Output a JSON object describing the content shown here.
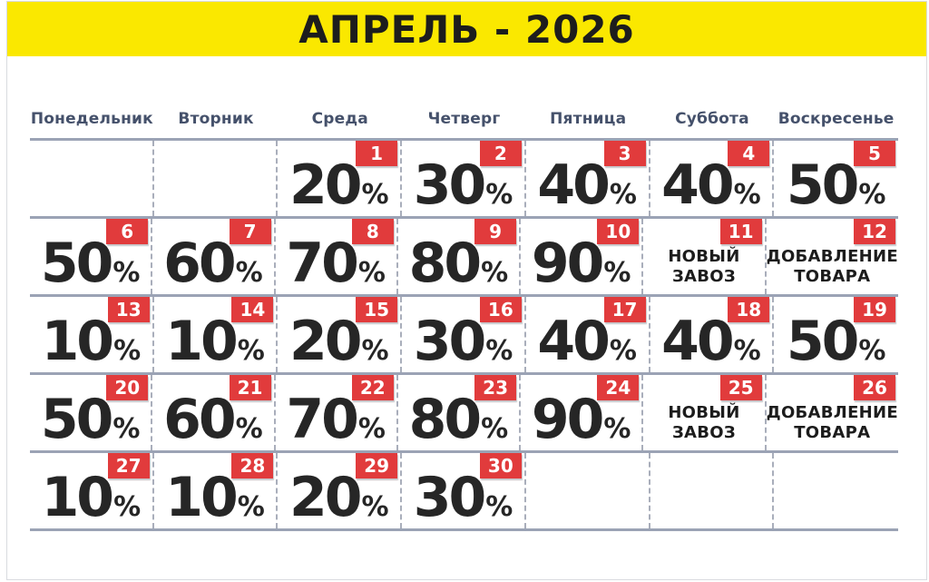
{
  "title": "АПРЕЛЬ - 2026",
  "colors": {
    "banner_bg": "#FAE800",
    "title_text": "#1D1D1D",
    "weekday_text": "#45516B",
    "value_text": "#262626",
    "badge_bg": "#E13B3C",
    "badge_text": "#FFFFFF",
    "row_line": "#9BA3B5",
    "col_line": "#A9AEBB",
    "frame_line": "#D9DBE0"
  },
  "calendar": {
    "weekdays": [
      "Понедельник",
      "Вторник",
      "Среда",
      "Четверг",
      "Пятница",
      "Суббота",
      "Воскресенье"
    ],
    "percent_suffix": "%",
    "weeks": [
      [
        {
          "empty": true
        },
        {
          "empty": true
        },
        {
          "day": "1",
          "percent": "20"
        },
        {
          "day": "2",
          "percent": "30"
        },
        {
          "day": "3",
          "percent": "40"
        },
        {
          "day": "4",
          "percent": "40"
        },
        {
          "day": "5",
          "percent": "50"
        }
      ],
      [
        {
          "day": "6",
          "percent": "50"
        },
        {
          "day": "7",
          "percent": "60"
        },
        {
          "day": "8",
          "percent": "70"
        },
        {
          "day": "9",
          "percent": "80"
        },
        {
          "day": "10",
          "percent": "90"
        },
        {
          "day": "11",
          "lines": [
            "НОВЫЙ",
            "ЗАВОЗ"
          ]
        },
        {
          "day": "12",
          "lines": [
            "ДОБАВЛЕНИЕ",
            "ТОВАРА"
          ]
        }
      ],
      [
        {
          "day": "13",
          "percent": "10"
        },
        {
          "day": "14",
          "percent": "10"
        },
        {
          "day": "15",
          "percent": "20"
        },
        {
          "day": "16",
          "percent": "30"
        },
        {
          "day": "17",
          "percent": "40"
        },
        {
          "day": "18",
          "percent": "40"
        },
        {
          "day": "19",
          "percent": "50"
        }
      ],
      [
        {
          "day": "20",
          "percent": "50"
        },
        {
          "day": "21",
          "percent": "60"
        },
        {
          "day": "22",
          "percent": "70"
        },
        {
          "day": "23",
          "percent": "80"
        },
        {
          "day": "24",
          "percent": "90"
        },
        {
          "day": "25",
          "lines": [
            "НОВЫЙ",
            "ЗАВОЗ"
          ]
        },
        {
          "day": "26",
          "lines": [
            "ДОБАВЛЕНИЕ",
            "ТОВАРА"
          ]
        }
      ],
      [
        {
          "day": "27",
          "percent": "10"
        },
        {
          "day": "28",
          "percent": "10"
        },
        {
          "day": "29",
          "percent": "20"
        },
        {
          "day": "30",
          "percent": "30"
        },
        {
          "empty": true
        },
        {
          "empty": true
        },
        {
          "empty": true
        }
      ]
    ]
  }
}
